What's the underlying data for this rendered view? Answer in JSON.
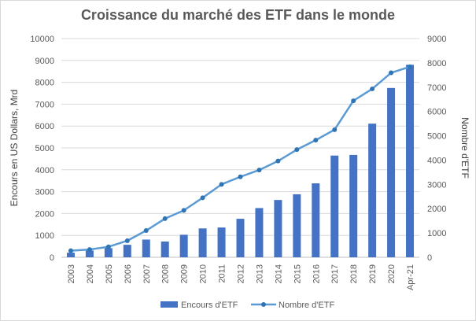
{
  "chart_data": {
    "type": "bar",
    "title": "Croissance du marché des ETF dans le monde",
    "categories": [
      "2003",
      "2004",
      "2005",
      "2006",
      "2007",
      "2008",
      "2009",
      "2010",
      "2011",
      "2012",
      "2013",
      "2014",
      "2015",
      "2016",
      "2017",
      "2018",
      "2019",
      "2020",
      "Apr-21"
    ],
    "series": [
      {
        "name": "Encours d'ETF",
        "type": "bar",
        "axis": "left",
        "color": "#4472c4",
        "values": [
          210,
          310,
          420,
          570,
          810,
          720,
          1030,
          1320,
          1360,
          1760,
          2250,
          2620,
          2880,
          3380,
          4650,
          4680,
          6110,
          7740,
          8800
        ]
      },
      {
        "name": "Nombre d'ETF",
        "type": "line",
        "axis": "right",
        "color": "#5b9bd5",
        "values": [
          270,
          320,
          430,
          680,
          1100,
          1590,
          1930,
          2450,
          3000,
          3310,
          3590,
          3960,
          4430,
          4820,
          5250,
          6440,
          6930,
          7590,
          7840
        ]
      }
    ],
    "ylabel_left": "Encours en  US Dollars, Mrd",
    "ylabel_right": "Nombre  d'ETF",
    "ylim_left": [
      0,
      10000
    ],
    "ylim_right": [
      0,
      9000
    ],
    "yticks_left": [
      "0",
      "1000",
      "2000",
      "3000",
      "4000",
      "5000",
      "6000",
      "7000",
      "8000",
      "9000",
      "10000"
    ],
    "yticks_right": [
      "0",
      "1000",
      "2000",
      "3000",
      "4000",
      "5000",
      "6000",
      "7000",
      "8000",
      "9000"
    ],
    "grid": true,
    "legend_position": "bottom"
  }
}
